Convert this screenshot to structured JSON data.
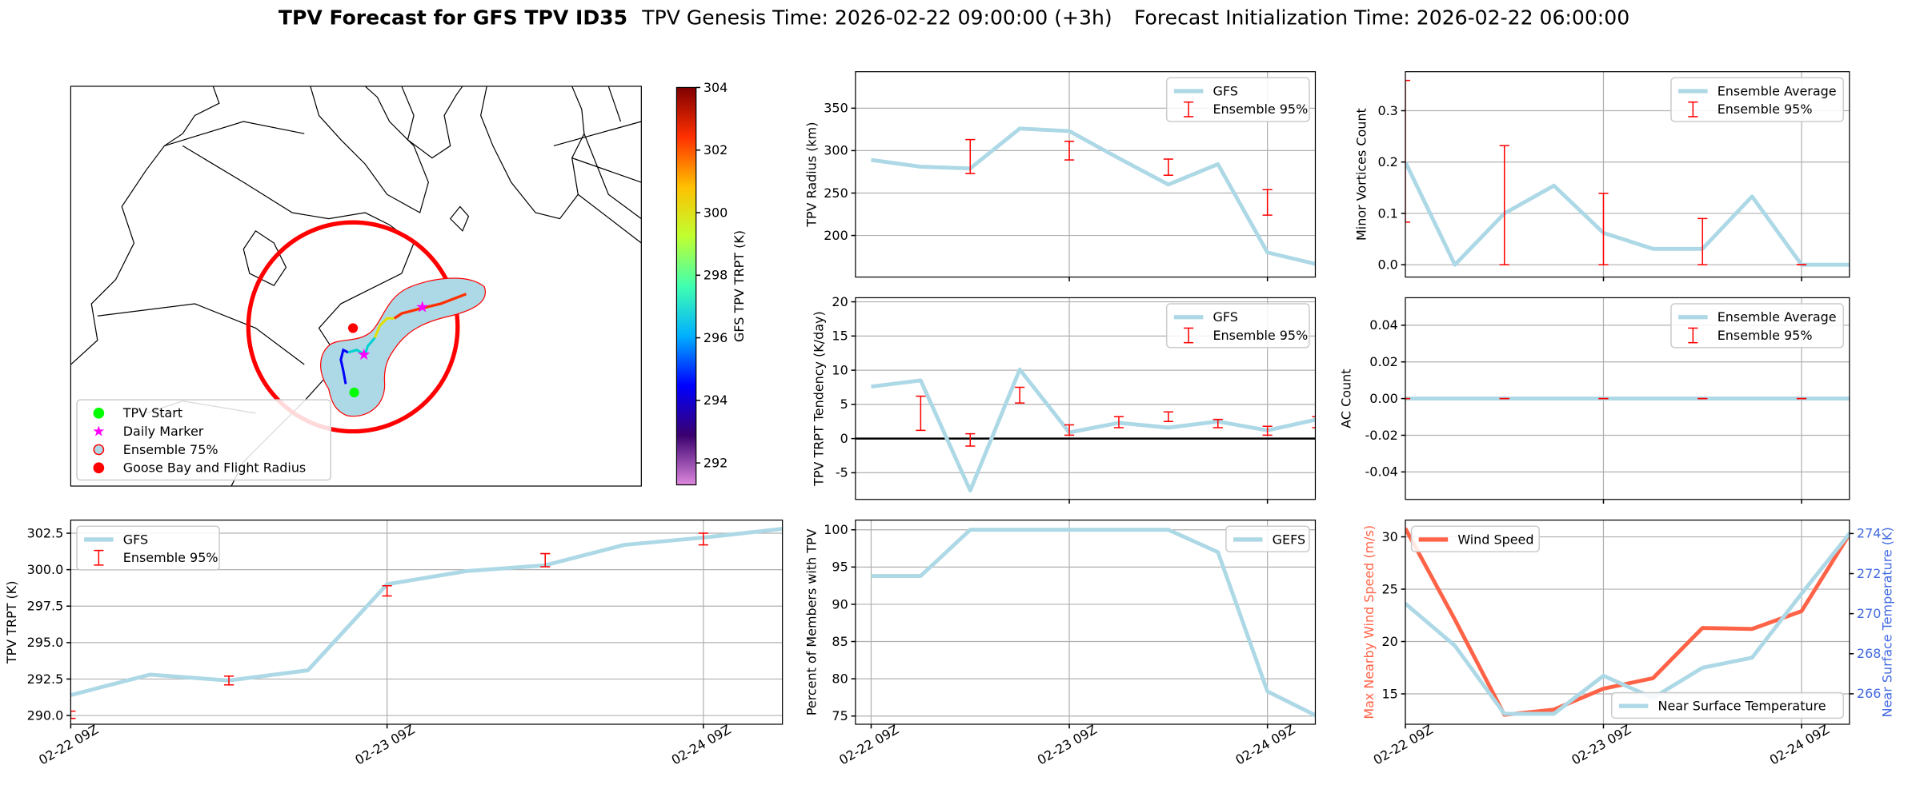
{
  "title": [
    "TPV Forecast for GFS TPV ID35",
    "TPV Genesis Time: 2026-02-22 09:00:00 (+3h)",
    "Forecast Initialization Time: 2026-02-22 06:00:00"
  ],
  "chart_data": [
    {
      "type": "map",
      "legend_loc": "lower left",
      "legend": [
        {
          "name": "TPV Start",
          "color": "#00ff00",
          "edge": "#00ff00",
          "marker": "circle"
        },
        {
          "name": "Daily Marker",
          "color": "#ff00ff",
          "edge": "#ff00ff",
          "marker": "star"
        },
        {
          "name": "Ensemble 75%",
          "color": "#add8e6",
          "edge": "#ff0000",
          "marker": "circle"
        },
        {
          "name": "Goose Bay and Flight Radius",
          "color": "#ff0000",
          "edge": "#ff0000",
          "marker": "circle"
        }
      ],
      "colorbar": {
        "label": "GFS TPV TRPT (K)",
        "clim": [
          291.3,
          304.0
        ],
        "ticks": [
          292,
          294,
          296,
          298,
          300,
          302,
          304
        ],
        "colors": [
          "#dd88dd",
          "#3a006e",
          "#0000ff",
          "#00b0ff",
          "#40ffb0",
          "#c0ff30",
          "#ffc000",
          "#ff3000",
          "#800000"
        ]
      }
    },
    {
      "type": "line",
      "x": [
        0,
        6,
        12,
        18,
        24,
        30,
        36,
        42,
        48,
        54
      ],
      "xlim": [
        0,
        54
      ],
      "xticks": [
        {
          "value": 0,
          "label": "02-22 09Z"
        },
        {
          "value": 24,
          "label": "02-23 09Z"
        },
        {
          "value": 48,
          "label": "02-24 09Z"
        }
      ],
      "ylabel": "TPV TRPT (K)",
      "ylim": [
        289.4,
        303.4
      ],
      "yticks": [
        {
          "value": 290,
          "label": "290.0"
        },
        292.5,
        {
          "value": 295,
          "label": "295.0"
        },
        297.5,
        {
          "value": 300,
          "label": "300.0"
        },
        302.5
      ],
      "grid": true,
      "legend_loc": "upper left",
      "series": [
        {
          "name": "GFS",
          "color": "#add8e6",
          "values": [
            291.4,
            292.8,
            292.4,
            293.1,
            299.0,
            299.9,
            300.3,
            301.7,
            302.2,
            302.8
          ]
        }
      ],
      "errors": {
        "name": "Ensemble 95%",
        "color": "#ff0000",
        "x": [
          0,
          12,
          24,
          36,
          48
        ],
        "low": [
          289.8,
          292.1,
          298.2,
          300.2,
          301.7
        ],
        "high": [
          290.3,
          292.7,
          298.9,
          301.1,
          302.5
        ]
      }
    },
    {
      "type": "line",
      "x": [
        0,
        6,
        12,
        18,
        24,
        30,
        36,
        42,
        48,
        54
      ],
      "xlim": [
        -1.9,
        53.8
      ],
      "xgrid": [
        24,
        48
      ],
      "ylabel": "TPV Radius (km)",
      "ylim": [
        151,
        393
      ],
      "yticks": [
        200,
        250,
        300,
        350
      ],
      "grid": true,
      "legend_loc": "upper right",
      "series": [
        {
          "name": "GFS",
          "color": "#add8e6",
          "values": [
            289,
            281,
            279,
            326,
            323,
            291,
            260,
            284,
            180,
            166
          ]
        }
      ],
      "errors": {
        "name": "Ensemble 95%",
        "color": "#ff0000",
        "x": [
          12,
          24,
          36,
          48
        ],
        "low": [
          273,
          289,
          271,
          224
        ],
        "high": [
          313,
          311,
          290,
          254
        ]
      }
    },
    {
      "type": "line",
      "x": [
        0,
        6,
        12,
        18,
        24,
        30,
        36,
        42,
        48,
        54
      ],
      "xlim": [
        -1.9,
        53.8
      ],
      "xgrid": [
        24,
        48
      ],
      "ylabel": "TPV TRPT Tendency (K/day)",
      "ylim": [
        -8.9,
        20.6
      ],
      "yticks": [
        -5,
        0,
        5,
        10,
        15,
        20
      ],
      "grid": true,
      "hline": {
        "value": 0,
        "color": "#000000"
      },
      "legend_loc": "upper right",
      "series": [
        {
          "name": "GFS",
          "color": "#add8e6",
          "values": [
            7.6,
            8.5,
            -7.6,
            10.1,
            0.9,
            2.3,
            1.6,
            2.5,
            1.2,
            2.8
          ]
        }
      ],
      "errors": {
        "name": "Ensemble 95%",
        "color": "#ff0000",
        "x": [
          6,
          12,
          18,
          24,
          30,
          36,
          42,
          48,
          54
        ],
        "low": [
          1.2,
          -1.1,
          5.2,
          0.5,
          1.6,
          2.5,
          1.6,
          0.5,
          1.6
        ],
        "high": [
          6.2,
          0.7,
          7.5,
          2.0,
          3.2,
          3.9,
          2.8,
          1.8,
          3.2
        ]
      }
    },
    {
      "type": "line",
      "x": [
        0,
        6,
        12,
        18,
        24,
        30,
        36,
        42,
        48,
        54
      ],
      "xlim": [
        -1.9,
        53.8
      ],
      "xticks": [
        {
          "value": 0,
          "label": "02-22 09Z"
        },
        {
          "value": 24,
          "label": "02-23 09Z"
        },
        {
          "value": 48,
          "label": "02-24 09Z"
        }
      ],
      "ylabel": "Percent of Members with TPV",
      "ylim": [
        73.9,
        101.3
      ],
      "yticks": [
        75,
        80,
        85,
        90,
        95,
        100
      ],
      "grid": true,
      "legend_loc": "upper right",
      "series": [
        {
          "name": "GEFS",
          "color": "#add8e6",
          "values": [
            93.8,
            93.8,
            100,
            100,
            100,
            100,
            100,
            97,
            78.3,
            75
          ]
        }
      ]
    },
    {
      "type": "line",
      "x": [
        0,
        6,
        12,
        18,
        24,
        30,
        36,
        42,
        48,
        54
      ],
      "xlim": [
        0,
        53.8
      ],
      "xgrid": [
        24,
        48
      ],
      "ylabel": "Minor Vortices Count",
      "ylim": [
        -0.024,
        0.376
      ],
      "yticks": [
        {
          "value": 0,
          "label": "0.0"
        },
        0.1,
        0.2,
        0.3
      ],
      "grid": true,
      "legend_loc": "upper right",
      "series": [
        {
          "name": "Ensemble Average",
          "color": "#add8e6",
          "values": [
            0.2,
            0,
            0.1,
            0.154,
            0.062,
            0.031,
            0.031,
            0.133,
            0,
            0
          ]
        }
      ],
      "errors": {
        "name": "Ensemble 95%",
        "color": "#ff0000",
        "x": [
          0,
          12,
          24,
          36,
          48
        ],
        "low": [
          0.083,
          0,
          0,
          0,
          0
        ],
        "high": [
          0.359,
          0.232,
          0.139,
          0.09,
          0
        ]
      }
    },
    {
      "type": "line",
      "x": [
        0,
        6,
        12,
        18,
        24,
        30,
        36,
        42,
        48,
        54
      ],
      "xlim": [
        0,
        53.8
      ],
      "xgrid": [
        24,
        48
      ],
      "ylabel": "AC Count",
      "ylim": [
        -0.055,
        0.055
      ],
      "yticks": [
        -0.04,
        -0.02,
        {
          "value": 0,
          "label": "0.00"
        },
        0.02,
        0.04
      ],
      "grid": true,
      "legend_loc": "upper right",
      "series": [
        {
          "name": "Ensemble Average",
          "color": "#add8e6",
          "values": [
            0,
            0,
            0,
            0,
            0,
            0,
            0,
            0,
            0,
            0
          ]
        }
      ],
      "errors": {
        "name": "Ensemble 95%",
        "color": "#ff0000",
        "x": [
          0,
          12,
          24,
          36,
          48
        ],
        "low": [
          0,
          0,
          0,
          0,
          0
        ],
        "high": [
          0,
          0,
          0,
          0,
          0
        ]
      }
    },
    {
      "type": "line",
      "x": [
        0,
        6,
        12,
        18,
        24,
        30,
        36,
        42,
        48,
        54
      ],
      "xlim": [
        0,
        53.8
      ],
      "xticks": [
        {
          "value": 0,
          "label": "02-22 09Z"
        },
        {
          "value": 24,
          "label": "02-23 09Z"
        },
        {
          "value": 48,
          "label": "02-24 09Z"
        }
      ],
      "ylabel": "Max Nearby Wind Speed (m/s)",
      "ylabel_color": "#ff6347",
      "ylim": [
        12.1,
        31.6
      ],
      "yticks": [
        15,
        20,
        25,
        30
      ],
      "y2label": "Near Surface Temperature (K)",
      "y2label_color": "#4169e1",
      "y2lim": [
        264.48,
        274.67
      ],
      "y2ticks": [
        266,
        268,
        270,
        272,
        274
      ],
      "grid": true,
      "series": [
        {
          "name": "Wind Speed",
          "color": "#ff6347",
          "legend_loc": "upper left",
          "values": [
            30.8,
            22.1,
            13.0,
            13.5,
            15.5,
            16.5,
            21.3,
            21.2,
            22.9,
            30.5
          ]
        },
        {
          "name": "Near Surface Temperature",
          "color": "#add8e6",
          "axis": "y2",
          "legend_loc": "lower right",
          "values": [
            270.5,
            268.4,
            265.0,
            265.0,
            266.9,
            265.8,
            267.3,
            267.8,
            271.0,
            274.1
          ]
        }
      ]
    }
  ]
}
